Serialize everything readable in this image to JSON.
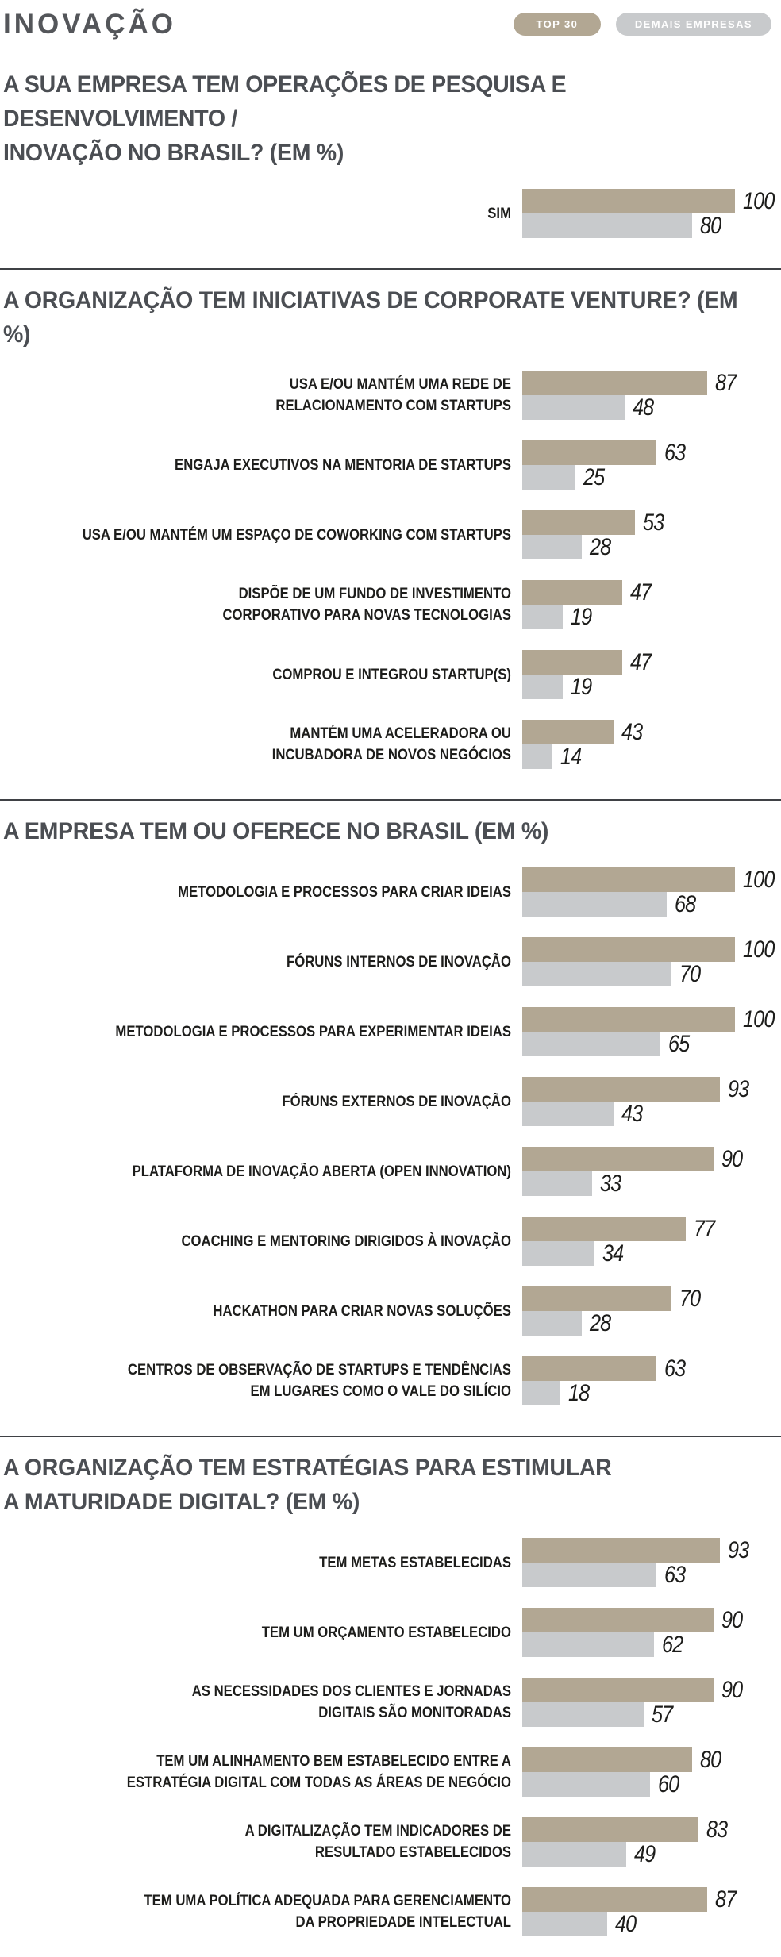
{
  "header": {
    "title": "INOVAÇÃO",
    "legend": [
      {
        "id": "top30",
        "label": "TOP 30"
      },
      {
        "id": "demais",
        "label": "DEMAIS EMPRESAS"
      }
    ]
  },
  "colors": {
    "top30": "#b2a793",
    "demais": "#c8cacc",
    "title_text": "#4b4e53",
    "label_text": "#1d1d1b",
    "divider": "#3f4145",
    "badge_text": "#ffffff",
    "background": "#ffffff"
  },
  "chart_data": [
    {
      "type": "bar",
      "orientation": "horizontal",
      "title": "A SUA EMPRESA TEM OPERAÇÕES DE PESQUISA E DESENVOLVIMENTO /\nINOVAÇÃO NO BRASIL? (EM %)",
      "series_names": [
        "TOP 30",
        "DEMAIS EMPRESAS"
      ],
      "xlim": [
        0,
        100
      ],
      "grid": false,
      "legend_position": "top-right",
      "items": [
        {
          "label": "SIM",
          "top30": 100,
          "demais": 80
        }
      ]
    },
    {
      "type": "bar",
      "orientation": "horizontal",
      "title": "A ORGANIZAÇÃO TEM INICIATIVAS DE CORPORATE VENTURE? (EM %)",
      "series_names": [
        "TOP 30",
        "DEMAIS EMPRESAS"
      ],
      "xlim": [
        0,
        100
      ],
      "grid": false,
      "items": [
        {
          "label": "USA E/OU MANTÉM UMA REDE DE\nRELACIONAMENTO COM STARTUPS",
          "top30": 87,
          "demais": 48
        },
        {
          "label": "ENGAJA EXECUTIVOS NA MENTORIA DE STARTUPS",
          "top30": 63,
          "demais": 25
        },
        {
          "label": "USA E/OU MANTÉM UM ESPAÇO DE COWORKING COM STARTUPS",
          "top30": 53,
          "demais": 28
        },
        {
          "label": "DISPÕE DE UM FUNDO DE INVESTIMENTO\nCORPORATIVO PARA NOVAS TECNOLOGIAS",
          "top30": 47,
          "demais": 19
        },
        {
          "label": "COMPROU E INTEGROU STARTUP(S)",
          "top30": 47,
          "demais": 19
        },
        {
          "label": "MANTÉM UMA ACELERADORA OU\nINCUBADORA DE NOVOS NEGÓCIOS",
          "top30": 43,
          "demais": 14
        }
      ]
    },
    {
      "type": "bar",
      "orientation": "horizontal",
      "title": "A EMPRESA TEM OU OFERECE NO BRASIL (EM %)",
      "series_names": [
        "TOP 30",
        "DEMAIS EMPRESAS"
      ],
      "xlim": [
        0,
        100
      ],
      "grid": false,
      "items": [
        {
          "label": "METODOLOGIA E PROCESSOS PARA CRIAR IDEIAS",
          "top30": 100,
          "demais": 68
        },
        {
          "label": "FÓRUNS INTERNOS DE INOVAÇÃO",
          "top30": 100,
          "demais": 70
        },
        {
          "label": "METODOLOGIA E PROCESSOS PARA EXPERIMENTAR IDEIAS",
          "top30": 100,
          "demais": 65
        },
        {
          "label": "FÓRUNS EXTERNOS DE INOVAÇÃO",
          "top30": 93,
          "demais": 43
        },
        {
          "label": "PLATAFORMA DE INOVAÇÃO ABERTA (OPEN INNOVATION)",
          "top30": 90,
          "demais": 33
        },
        {
          "label": "COACHING E MENTORING DIRIGIDOS À INOVAÇÃO",
          "top30": 77,
          "demais": 34
        },
        {
          "label": "HACKATHON PARA CRIAR NOVAS SOLUÇÕES",
          "top30": 70,
          "demais": 28
        },
        {
          "label": "CENTROS DE OBSERVAÇÃO DE STARTUPS E TENDÊNCIAS\nEM LUGARES COMO O VALE DO SILÍCIO",
          "top30": 63,
          "demais": 18
        }
      ]
    },
    {
      "type": "bar",
      "orientation": "horizontal",
      "title": "A ORGANIZAÇÃO TEM ESTRATÉGIAS PARA ESTIMULAR\nA MATURIDADE DIGITAL? (EM %)",
      "series_names": [
        "TOP 30",
        "DEMAIS EMPRESAS"
      ],
      "xlim": [
        0,
        100
      ],
      "grid": false,
      "items": [
        {
          "label": "TEM METAS ESTABELECIDAS",
          "top30": 93,
          "demais": 63
        },
        {
          "label": "TEM UM ORÇAMENTO ESTABELECIDO",
          "top30": 90,
          "demais": 62
        },
        {
          "label": "AS NECESSIDADES DOS CLIENTES E JORNADAS\nDIGITAIS SÃO MONITORADAS",
          "top30": 90,
          "demais": 57
        },
        {
          "label": "TEM UM ALINHAMENTO BEM ESTABELECIDO ENTRE A\nESTRATÉGIA DIGITAL COM TODAS AS ÁREAS DE NEGÓCIO",
          "top30": 80,
          "demais": 60
        },
        {
          "label": "A DIGITALIZAÇÃO TEM INDICADORES DE\nRESULTADO ESTABELECIDOS",
          "top30": 83,
          "demais": 49
        },
        {
          "label": "TEM UMA POLÍTICA ADEQUADA PARA GERENCIAMENTO\nDA PROPRIEDADE INTELECTUAL",
          "top30": 87,
          "demais": 40
        }
      ]
    }
  ]
}
